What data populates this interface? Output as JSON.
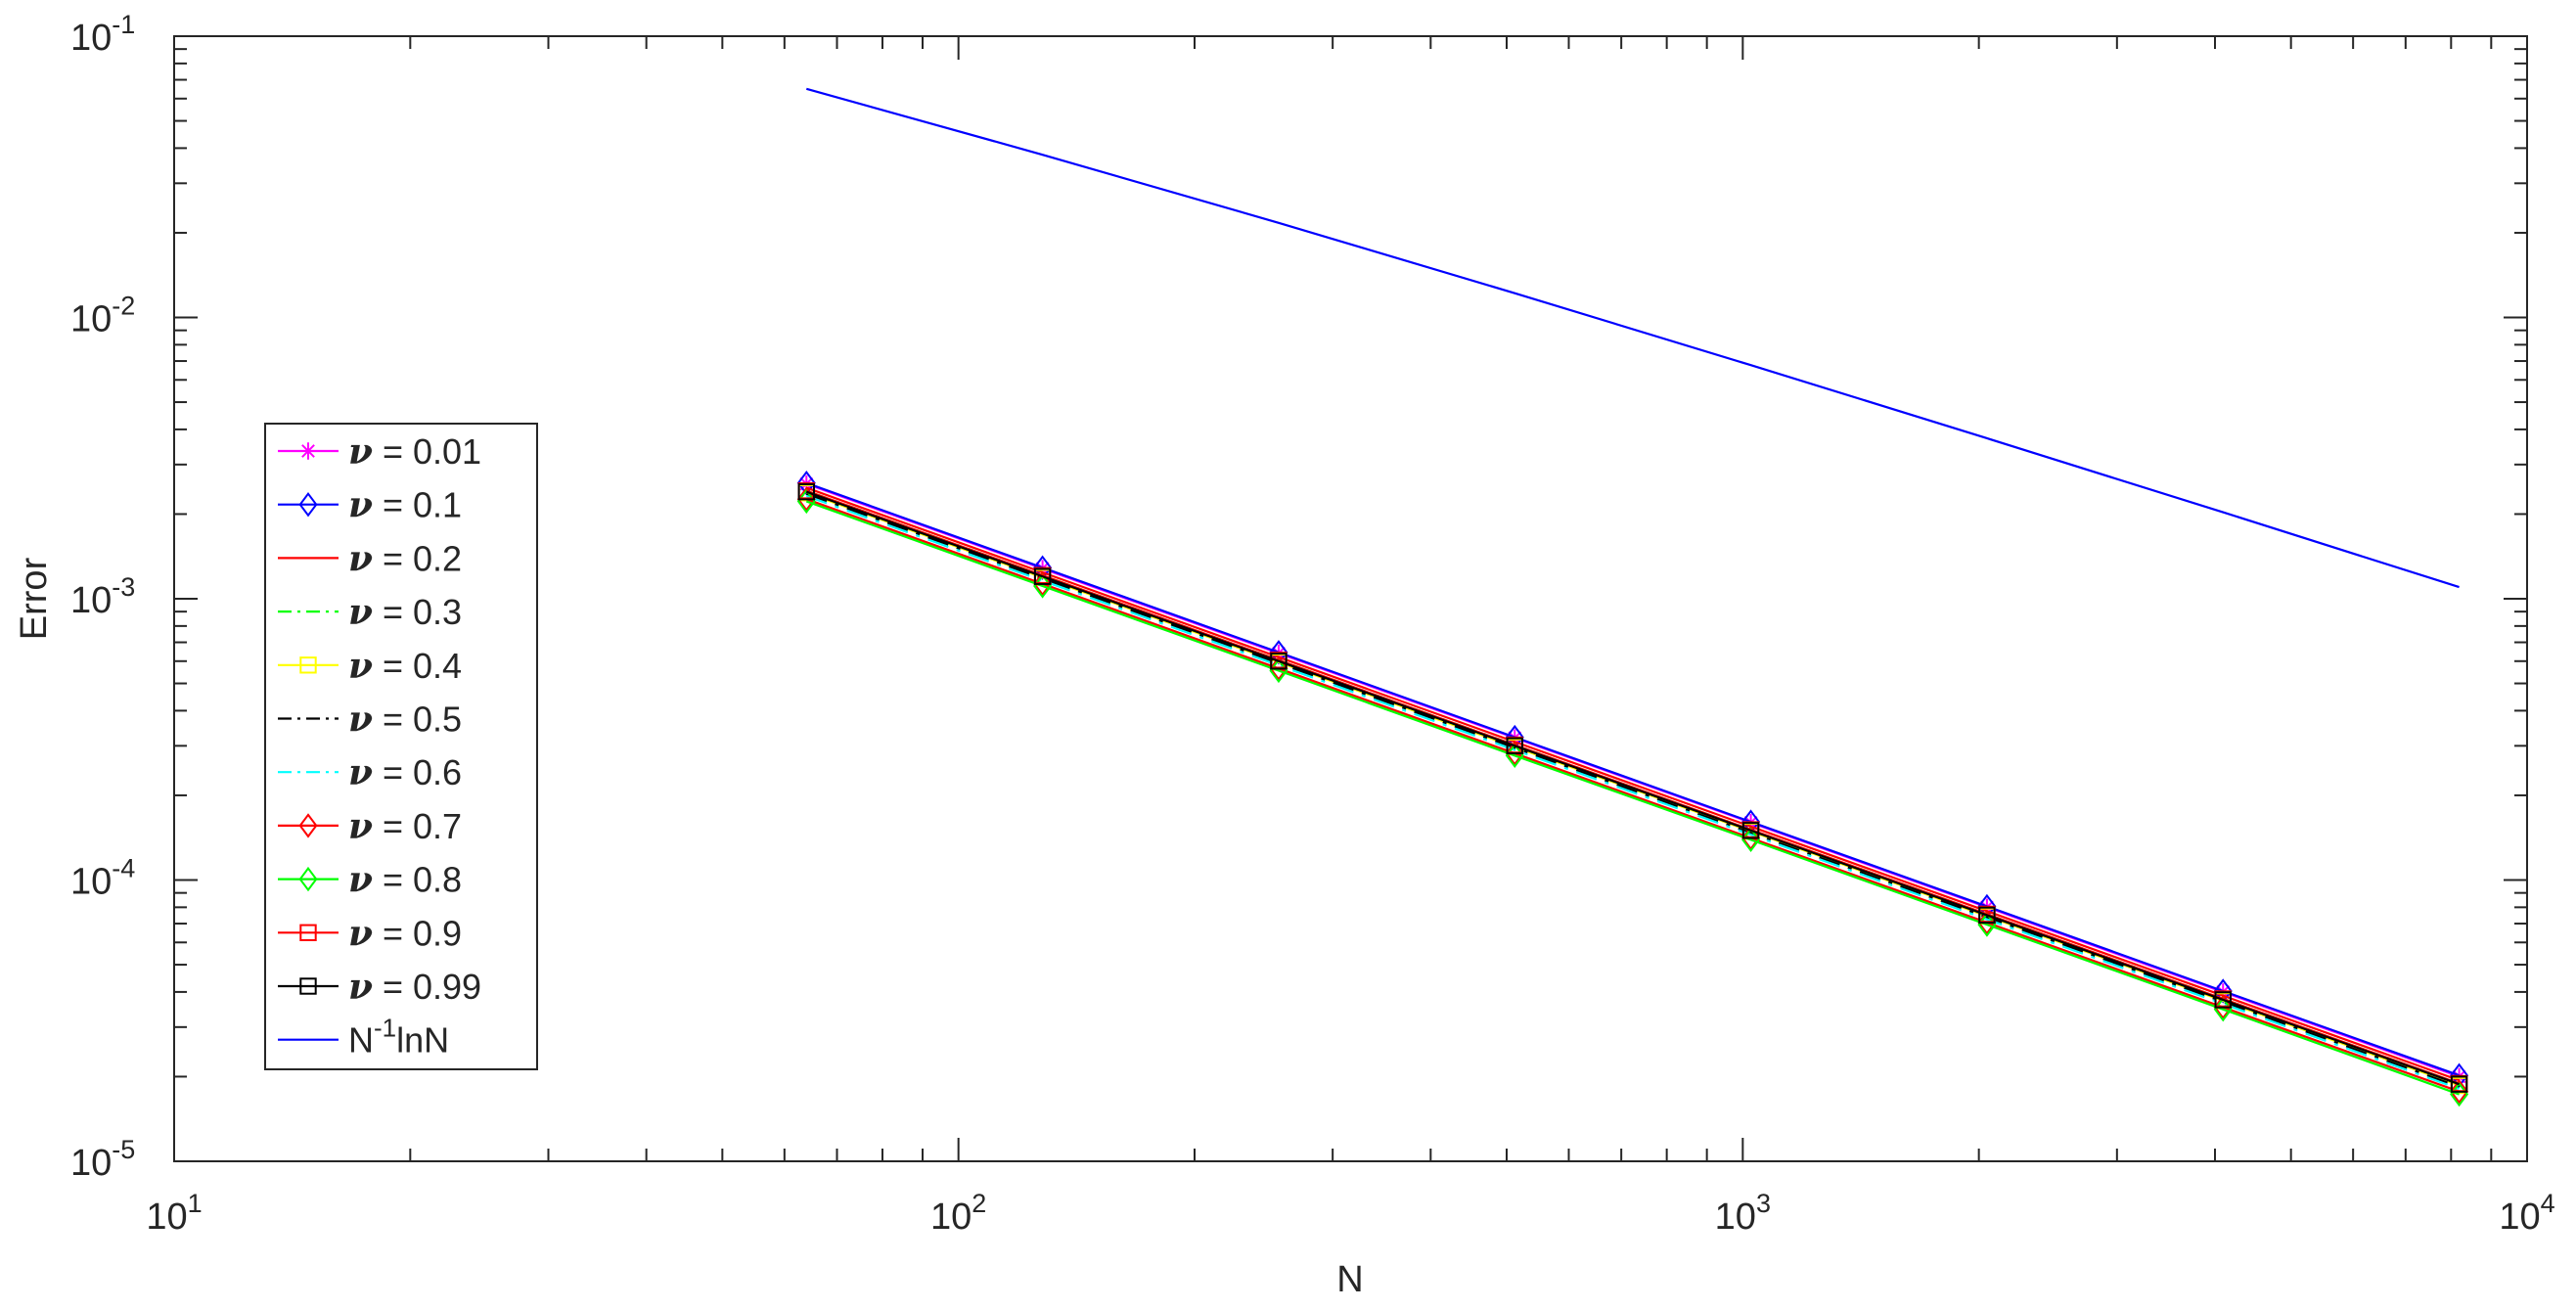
{
  "chart_data": {
    "type": "line",
    "xscale": "log",
    "yscale": "log",
    "xlim": [
      10,
      10000
    ],
    "ylim": [
      1e-05,
      0.1
    ],
    "xlabel": "N",
    "ylabel": "Error",
    "grid": false,
    "legend_position": "left",
    "x_ticks": [
      {
        "base": "10",
        "exp": "1"
      },
      {
        "base": "10",
        "exp": "2"
      },
      {
        "base": "10",
        "exp": "3"
      },
      {
        "base": "10",
        "exp": "4"
      }
    ],
    "y_ticks": [
      {
        "base": "10",
        "exp": "-5"
      },
      {
        "base": "10",
        "exp": "-4"
      },
      {
        "base": "10",
        "exp": "-3"
      },
      {
        "base": "10",
        "exp": "-2"
      },
      {
        "base": "10",
        "exp": "-1"
      }
    ],
    "x": [
      64,
      128,
      256,
      512,
      1024,
      2048,
      4096,
      8192
    ],
    "series": [
      {
        "name": "ν = 0.01",
        "color": "#ff00ff",
        "style": "solid",
        "marker": "star",
        "values": [
          0.00256,
          0.00128,
          0.00064,
          0.00032,
          0.00016,
          8e-05,
          4e-05,
          2e-05
        ]
      },
      {
        "name": "ν = 0.1",
        "color": "#0000ff",
        "style": "solid",
        "marker": "diamond",
        "values": [
          0.00258,
          0.00129,
          0.000645,
          0.000322,
          0.000161,
          8.06e-05,
          4.03e-05,
          2.02e-05
        ]
      },
      {
        "name": "ν = 0.2",
        "color": "#ff0000",
        "style": "solid",
        "marker": "none",
        "values": [
          0.00248,
          0.00124,
          0.00062,
          0.00031,
          0.000155,
          7.75e-05,
          3.88e-05,
          1.94e-05
        ]
      },
      {
        "name": "ν = 0.3",
        "color": "#00ff00",
        "style": "dashdot",
        "marker": "none",
        "values": [
          0.00242,
          0.00121,
          0.000605,
          0.000302,
          0.000151,
          7.56e-05,
          3.78e-05,
          1.89e-05
        ]
      },
      {
        "name": "ν = 0.4",
        "color": "#ffff00",
        "style": "solid",
        "marker": "square",
        "values": [
          0.00238,
          0.00119,
          0.000595,
          0.000297,
          0.000149,
          7.44e-05,
          3.72e-05,
          1.86e-05
        ]
      },
      {
        "name": "ν = 0.5",
        "color": "#000000",
        "style": "dashdot",
        "marker": "none",
        "values": [
          0.00236,
          0.00118,
          0.00059,
          0.000295,
          0.000147,
          7.37e-05,
          3.69e-05,
          1.84e-05
        ]
      },
      {
        "name": "ν = 0.6",
        "color": "#00ffff",
        "style": "dashdot",
        "marker": "none",
        "values": [
          0.00232,
          0.00116,
          0.00058,
          0.00029,
          0.000145,
          7.25e-05,
          3.63e-05,
          1.81e-05
        ]
      },
      {
        "name": "ν = 0.7",
        "color": "#ff0000",
        "style": "solid",
        "marker": "diamond",
        "values": [
          0.00226,
          0.00113,
          0.000565,
          0.000282,
          0.000141,
          7.06e-05,
          3.53e-05,
          1.77e-05
        ]
      },
      {
        "name": "ν = 0.8",
        "color": "#00ff00",
        "style": "solid",
        "marker": "diamond",
        "values": [
          0.00222,
          0.00111,
          0.000555,
          0.000277,
          0.000139,
          6.94e-05,
          3.47e-05,
          1.73e-05
        ]
      },
      {
        "name": "ν = 0.9",
        "color": "#ff0000",
        "style": "solid",
        "marker": "square",
        "values": [
          0.00242,
          0.00121,
          0.000605,
          0.000302,
          0.000151,
          7.56e-05,
          3.78e-05,
          1.89e-05
        ]
      },
      {
        "name": "ν = 0.99",
        "color": "#000000",
        "style": "solid",
        "marker": "square",
        "values": [
          0.0024,
          0.0012,
          0.0006,
          0.0003,
          0.00015,
          7.5e-05,
          3.75e-05,
          1.88e-05
        ]
      },
      {
        "name": "N^{-1}lnN",
        "color": "#0000ff",
        "style": "solid",
        "marker": "none",
        "values": [
          0.065,
          0.0379,
          0.0217,
          0.0122,
          0.00677,
          0.00372,
          0.00203,
          0.0011
        ]
      }
    ]
  }
}
